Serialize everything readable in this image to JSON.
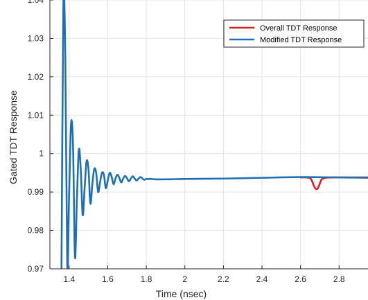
{
  "chart_data": {
    "type": "line",
    "xlabel": "Time (nsec)",
    "ylabel": "Gated TDT Response",
    "xlim": [
      1.3,
      2.95
    ],
    "ylim": [
      0.97,
      1.04
    ],
    "x_ticks": [
      1.4,
      1.6,
      1.8,
      2.0,
      2.2,
      2.4,
      2.6,
      2.8
    ],
    "x_tick_labels": [
      "1.4",
      "1.6",
      "1.8",
      "2",
      "2.2",
      "2.4",
      "2.6",
      "2.8"
    ],
    "y_ticks": [
      0.97,
      0.98,
      0.99,
      1.0,
      1.01,
      1.02,
      1.03,
      1.04
    ],
    "y_tick_labels": [
      "0.97",
      "0.98",
      "0.99",
      "1",
      "1.01",
      "1.02",
      "1.03",
      "1.04"
    ],
    "grid": true,
    "legend_position": "top-right",
    "series": [
      {
        "name": "Overall TDT Response",
        "color": "#d92020",
        "x": [
          2.6,
          2.63,
          2.65,
          2.66,
          2.67,
          2.68,
          2.69,
          2.7,
          2.71,
          2.73,
          2.76,
          2.8,
          2.9,
          2.95
        ],
        "y": [
          0.9938,
          0.9938,
          0.9936,
          0.9928,
          0.9915,
          0.9908,
          0.991,
          0.9922,
          0.9933,
          0.9937,
          0.9938,
          0.9938,
          0.9938,
          0.9938
        ]
      },
      {
        "name": "Modified TDT Response",
        "color": "#1f6fb4",
        "x": [
          1.36,
          1.37,
          1.38,
          1.39,
          1.4,
          1.41,
          1.42,
          1.43,
          1.44,
          1.45,
          1.46,
          1.47,
          1.48,
          1.49,
          1.5,
          1.51,
          1.52,
          1.53,
          1.54,
          1.55,
          1.56,
          1.57,
          1.58,
          1.59,
          1.6,
          1.61,
          1.62,
          1.63,
          1.64,
          1.65,
          1.66,
          1.67,
          1.68,
          1.69,
          1.7,
          1.71,
          1.72,
          1.73,
          1.74,
          1.75,
          1.76,
          1.77,
          1.78,
          1.79,
          1.8,
          1.82,
          1.85,
          1.9,
          2.0,
          2.2,
          2.4,
          2.6,
          2.8,
          2.95
        ],
        "y": [
          0.969,
          1.039,
          1.025,
          0.971,
          0.99,
          1.008,
          1.002,
          0.973,
          0.988,
          1.001,
          0.996,
          0.984,
          0.991,
          0.998,
          0.996,
          0.987,
          0.992,
          0.996,
          0.995,
          0.99,
          0.9925,
          0.995,
          0.9945,
          0.991,
          0.993,
          0.995,
          0.994,
          0.992,
          0.9935,
          0.9945,
          0.9937,
          0.9925,
          0.9935,
          0.9942,
          0.9936,
          0.9928,
          0.9935,
          0.9941,
          0.9935,
          0.993,
          0.9935,
          0.9939,
          0.9935,
          0.9932,
          0.9934,
          0.9934,
          0.9933,
          0.9933,
          0.9934,
          0.9935,
          0.9937,
          0.9939,
          0.9938,
          0.9937
        ]
      }
    ]
  }
}
